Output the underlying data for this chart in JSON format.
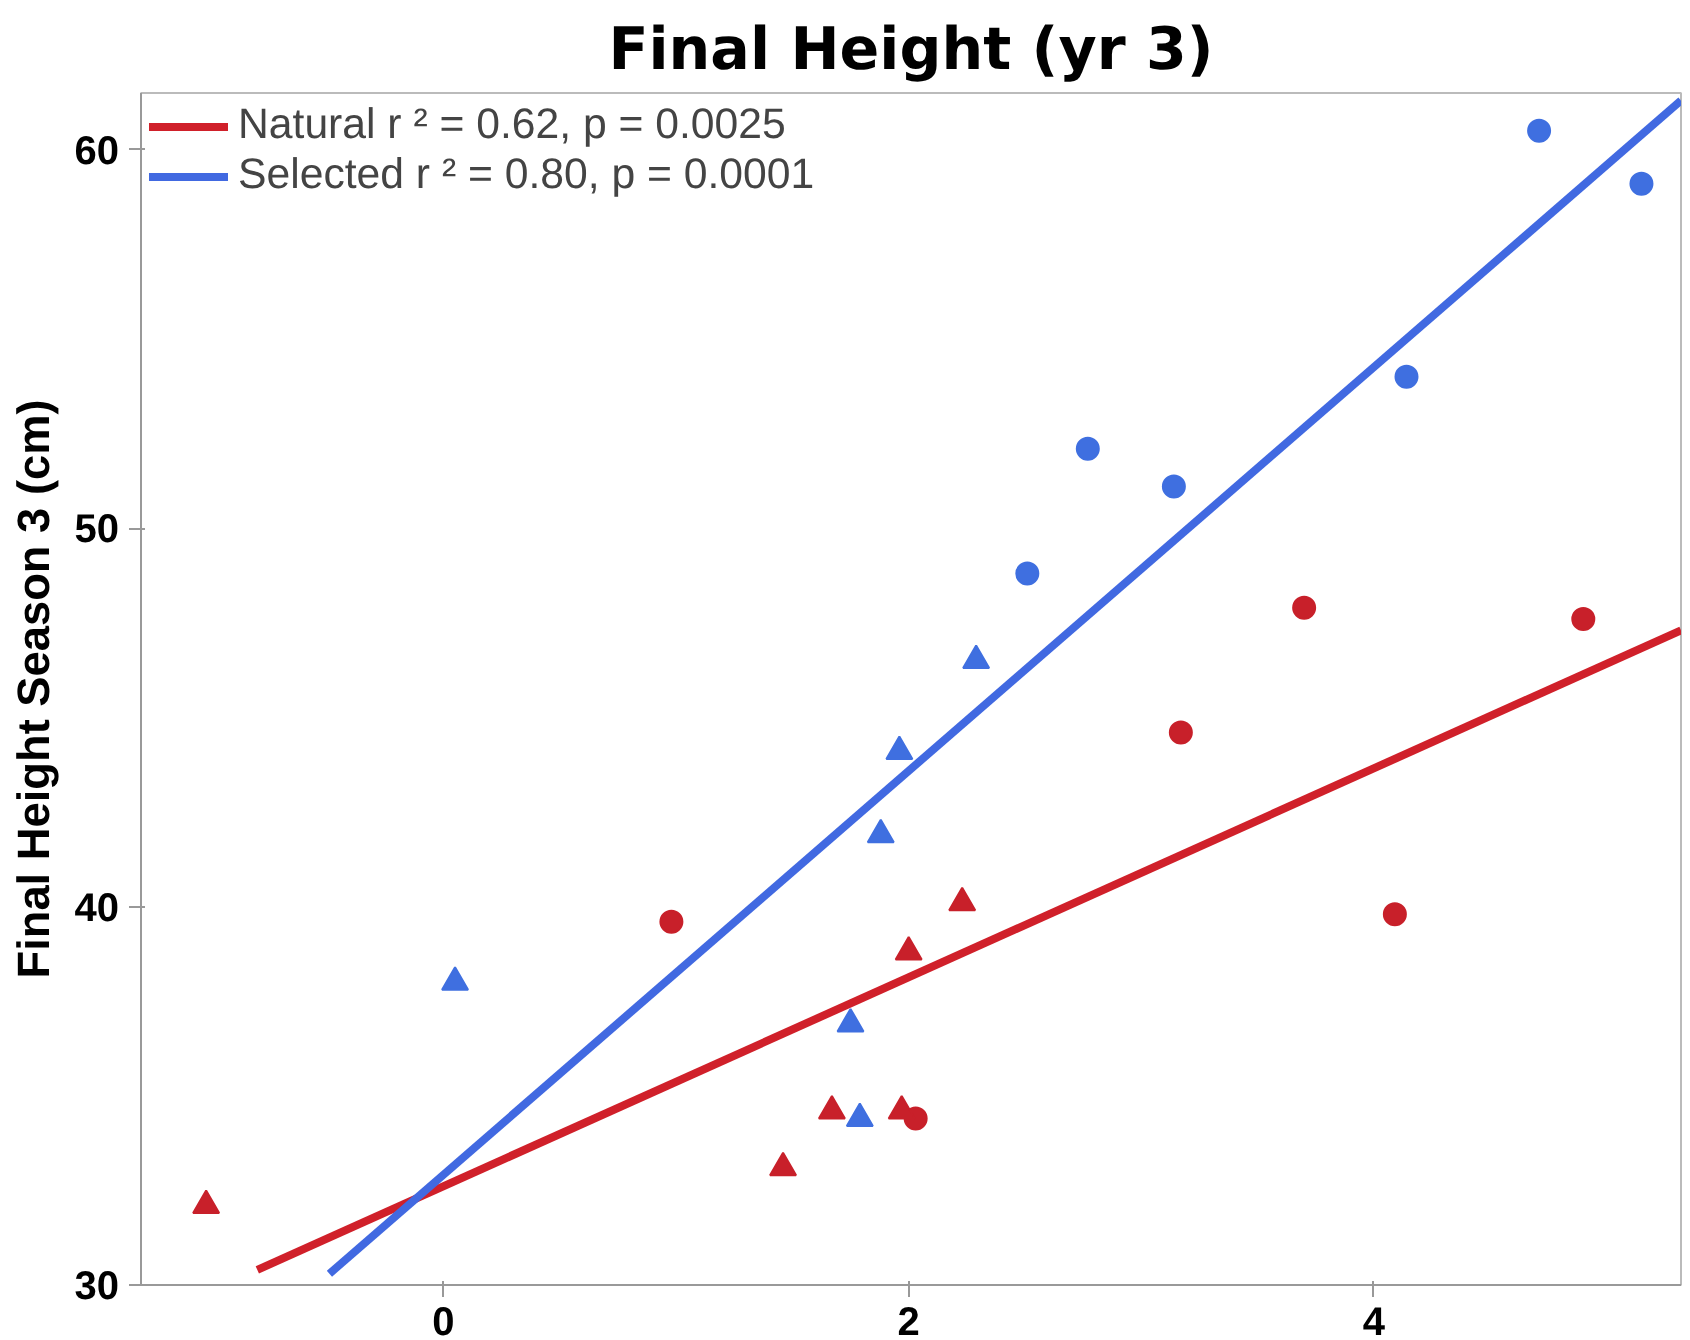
{
  "chart_data": {
    "type": "scatter",
    "title": "Final Height (yr 3)",
    "ylabel": "Final Height Season 3 (cm)",
    "xlim": [
      -1.3,
      5.32
    ],
    "ylim": [
      30,
      61.5
    ],
    "xticks": [
      0,
      2,
      4
    ],
    "yticks": [
      30,
      40,
      50,
      60
    ],
    "grid": false,
    "legend": "top left",
    "series": [
      {
        "type": "line",
        "name": "Natural r ² = 0.62, p = 0.0025",
        "color": "#d0202a",
        "x": [
          -0.8,
          5.32
        ],
        "values": [
          30.4,
          47.3
        ],
        "marker": "none"
      },
      {
        "type": "line",
        "name": "Selected r ² = 0.80, p = 0.0001",
        "color": "#4169e1",
        "x": [
          -0.49,
          5.32
        ],
        "values": [
          30.3,
          61.3
        ],
        "marker": "none"
      },
      {
        "color": "#c8202a",
        "marker": "circle",
        "x": [
          0.98,
          2.03,
          3.17,
          3.7,
          4.09,
          4.9
        ],
        "values": [
          39.6,
          34.4,
          44.6,
          47.9,
          39.8,
          47.6
        ]
      },
      {
        "color": "#c8202a",
        "marker": "triangle",
        "x": [
          -1.02,
          1.46,
          1.67,
          1.97,
          2.0,
          2.23
        ],
        "values": [
          32.1,
          33.1,
          34.6,
          34.6,
          38.8,
          40.1
        ]
      },
      {
        "color": "#3f6fe0",
        "marker": "circle",
        "x": [
          2.51,
          2.77,
          3.14,
          4.14,
          4.71,
          5.15
        ],
        "values": [
          48.8,
          52.1,
          51.1,
          54.0,
          60.5,
          59.1
        ]
      },
      {
        "color": "#3f6fe0",
        "marker": "triangle",
        "x": [
          0.05,
          1.75,
          1.79,
          1.88,
          1.96,
          2.29
        ],
        "values": [
          38.0,
          36.9,
          34.4,
          41.9,
          44.1,
          46.5
        ]
      }
    ]
  }
}
